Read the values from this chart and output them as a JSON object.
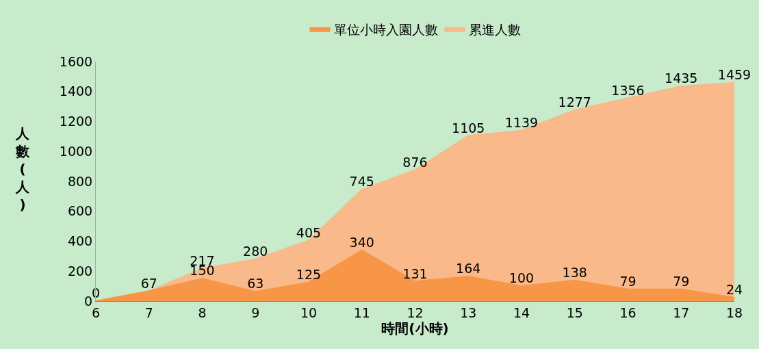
{
  "chart_data": {
    "type": "area",
    "xlabel": "時間(小時)",
    "ylabel": "人數(人)",
    "x": [
      6,
      7,
      8,
      9,
      10,
      11,
      12,
      13,
      14,
      15,
      16,
      17,
      18
    ],
    "series": [
      {
        "name": "單位小時入園人數",
        "color": "#f79646",
        "values": [
          0,
          67,
          150,
          63,
          125,
          340,
          131,
          164,
          100,
          138,
          79,
          79,
          24
        ],
        "value_labels": [
          null,
          null,
          "150",
          "63",
          "125",
          "340",
          "131",
          "164",
          "100",
          "138",
          "79",
          "79",
          "24"
        ]
      },
      {
        "name": "累進人數",
        "color": "#f9b98a",
        "values": [
          0,
          67,
          217,
          280,
          405,
          745,
          876,
          1105,
          1139,
          1277,
          1356,
          1435,
          1459
        ],
        "value_labels": [
          "0",
          "67",
          "217",
          "280",
          "405",
          "745",
          "876",
          "1105",
          "1139",
          "1277",
          "1356",
          "1435",
          "1459"
        ]
      }
    ],
    "xlim": [
      6,
      18
    ],
    "xticks": [
      6,
      7,
      8,
      9,
      10,
      11,
      12,
      13,
      14,
      15,
      16,
      17,
      18
    ],
    "ylim": [
      0,
      1600
    ],
    "yticks": [
      0,
      200,
      400,
      600,
      800,
      1000,
      1200,
      1400,
      1600
    ],
    "grid": false,
    "legend": "top"
  }
}
